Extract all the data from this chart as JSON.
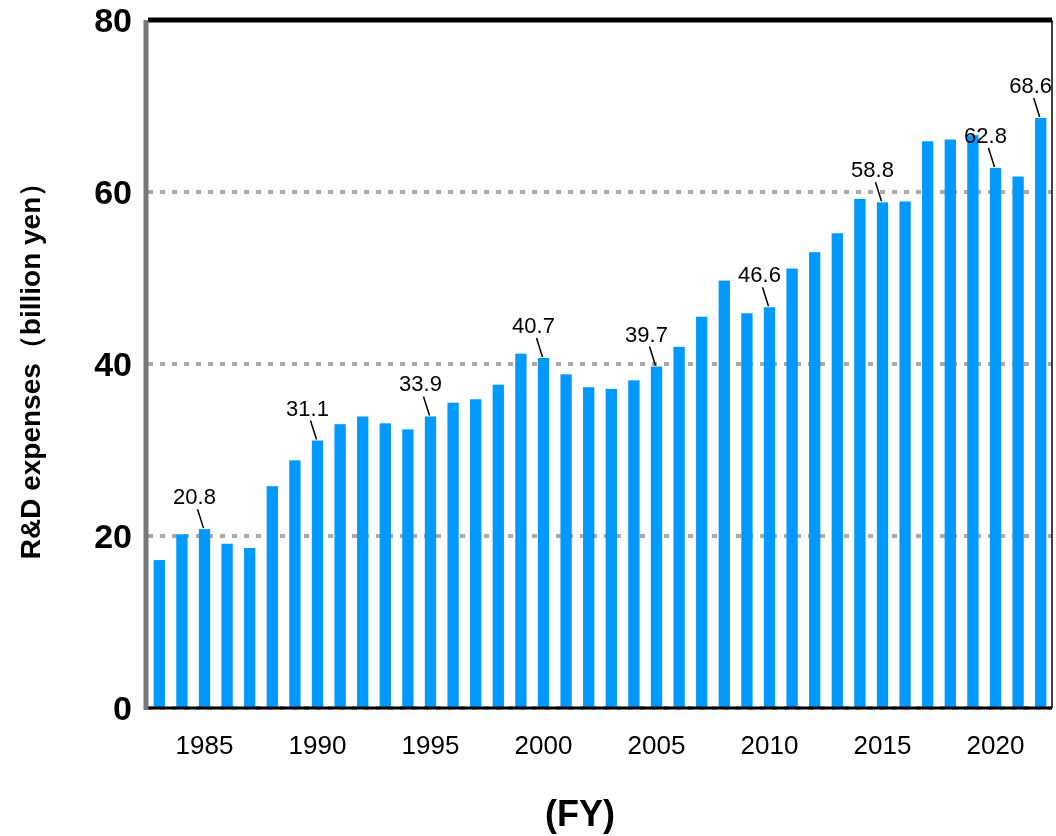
{
  "chart_data": {
    "type": "bar",
    "xlabel": "(FY)",
    "ylabel": "R&D expenses（billion yen）",
    "categories": [
      null,
      null,
      "1985",
      null,
      null,
      null,
      null,
      "1990",
      null,
      null,
      null,
      null,
      "1995",
      null,
      null,
      null,
      null,
      "2000",
      null,
      null,
      null,
      null,
      "2005",
      null,
      null,
      null,
      null,
      "2010",
      null,
      null,
      null,
      null,
      "2015",
      null,
      null,
      null,
      null,
      "2020",
      null,
      null
    ],
    "values": [
      17.2,
      20.2,
      20.8,
      19.1,
      18.6,
      25.8,
      28.8,
      31.1,
      33.0,
      33.9,
      33.1,
      32.4,
      33.9,
      35.5,
      35.9,
      37.6,
      41.2,
      40.7,
      38.8,
      37.3,
      37.1,
      38.1,
      39.7,
      42.0,
      45.5,
      49.7,
      45.9,
      46.6,
      51.1,
      53.0,
      55.2,
      59.2,
      58.8,
      58.9,
      65.9,
      66.1,
      66.6,
      62.8,
      61.8,
      68.6
    ],
    "value_labels": [
      null,
      null,
      "20.8",
      null,
      null,
      null,
      null,
      "31.1",
      null,
      null,
      null,
      null,
      "33.9",
      null,
      null,
      null,
      null,
      "40.7",
      null,
      null,
      null,
      null,
      "39.7",
      null,
      null,
      null,
      null,
      "46.6",
      null,
      null,
      null,
      null,
      "58.8",
      null,
      null,
      null,
      null,
      "62.8",
      null,
      "68.6"
    ],
    "color": "#0099ff",
    "ylim": [
      0,
      80
    ],
    "yticks": [
      0,
      20,
      40,
      60,
      80
    ],
    "grid": "y"
  }
}
